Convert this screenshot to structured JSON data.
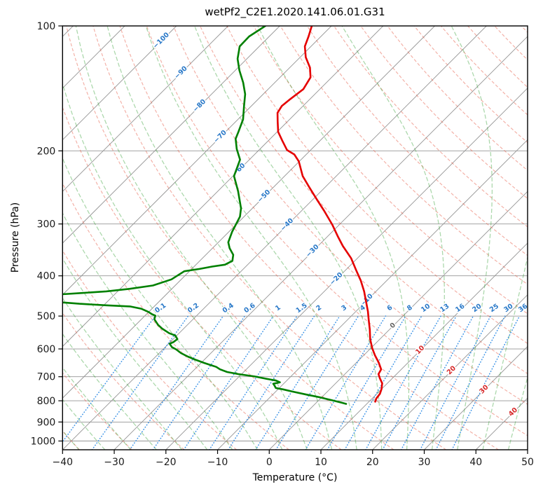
{
  "chart_data": {
    "type": "skewt-logp",
    "title": "wetPf2_C2E1.2020.141.06.01.G31",
    "xlabel": "Temperature (°C)",
    "ylabel": "Pressure (hPa)",
    "xlim": [
      -40,
      50
    ],
    "pressure_lim": [
      100,
      1050
    ],
    "temp_ticks": [
      -40,
      -30,
      -20,
      -10,
      0,
      10,
      20,
      30,
      40,
      50
    ],
    "pressure_ticks": [
      100,
      200,
      300,
      400,
      500,
      600,
      700,
      800,
      900,
      1000
    ],
    "grid": true,
    "skew_deg": 45,
    "isotherms": {
      "min": -120,
      "max": 50,
      "step": 10
    },
    "dry_adiabats": {
      "min": -40,
      "max": 200,
      "step": 10
    },
    "moist_adiabats": {
      "min": -40,
      "max": 45,
      "step": 5
    },
    "mixing_ratios": [
      0.1,
      0.2,
      0.4,
      0.6,
      1,
      1.5,
      2,
      3,
      4,
      6,
      8,
      10,
      13,
      16,
      20,
      25,
      30,
      36
    ],
    "mixing_label_pressure": 477,
    "mixing_top_pressure": 500,
    "isotherm_labels": [
      {
        "t": -100,
        "p": 108
      },
      {
        "t": -90,
        "p": 129
      },
      {
        "t": -80,
        "p": 155
      },
      {
        "t": -70,
        "p": 184
      },
      {
        "t": -60,
        "p": 221
      },
      {
        "t": -50,
        "p": 256
      },
      {
        "t": -40,
        "p": 300
      },
      {
        "t": -30,
        "p": 347
      },
      {
        "t": -20,
        "p": 405
      },
      {
        "t": -10,
        "p": 456
      },
      {
        "t": 0,
        "p": 525
      },
      {
        "t": 10,
        "p": 601
      },
      {
        "t": 20,
        "p": 673
      },
      {
        "t": 30,
        "p": 748
      },
      {
        "t": 40,
        "p": 848
      }
    ],
    "series": [
      {
        "name": "temperature",
        "color": "#e50000",
        "points": [
          [
            100,
            -73.8
          ],
          [
            106,
            -72.4
          ],
          [
            112,
            -71.2
          ],
          [
            119,
            -68.9
          ],
          [
            126,
            -66.1
          ],
          [
            133,
            -64.1
          ],
          [
            142,
            -63.2
          ],
          [
            150,
            -63.8
          ],
          [
            156,
            -64.1
          ],
          [
            162,
            -63.6
          ],
          [
            170,
            -61.9
          ],
          [
            180,
            -59.8
          ],
          [
            189,
            -57.3
          ],
          [
            199,
            -54.6
          ],
          [
            204,
            -52.3
          ],
          [
            212,
            -50.1
          ],
          [
            230,
            -46.5
          ],
          [
            245,
            -43
          ],
          [
            263,
            -39
          ],
          [
            279,
            -35.6
          ],
          [
            301,
            -31.4
          ],
          [
            321,
            -28.1
          ],
          [
            339,
            -25.2
          ],
          [
            363,
            -21.2
          ],
          [
            388,
            -17.9
          ],
          [
            411,
            -15
          ],
          [
            436,
            -12.3
          ],
          [
            462,
            -9.9
          ],
          [
            487,
            -7.7
          ],
          [
            512,
            -5.8
          ],
          [
            539,
            -3.8
          ],
          [
            568,
            -1.9
          ],
          [
            598,
            0.3
          ],
          [
            622,
            2.2
          ],
          [
            647,
            4.3
          ],
          [
            672,
            6.1
          ],
          [
            690,
            6.5
          ],
          [
            708,
            7.7
          ],
          [
            726,
            9
          ],
          [
            750,
            10
          ],
          [
            770,
            10.6
          ],
          [
            790,
            10.8
          ],
          [
            804,
            11.2
          ]
        ]
      },
      {
        "name": "dewpoint",
        "color": "#008000",
        "points": [
          [
            100,
            -82.8
          ],
          [
            106,
            -83.9
          ],
          [
            112,
            -83.8
          ],
          [
            120,
            -81.8
          ],
          [
            128,
            -79.2
          ],
          [
            137,
            -76.1
          ],
          [
            146,
            -73.5
          ],
          [
            156,
            -71.4
          ],
          [
            168,
            -69
          ],
          [
            180,
            -67.5
          ],
          [
            187,
            -66.7
          ],
          [
            198,
            -64.5
          ],
          [
            210,
            -61.8
          ],
          [
            230,
            -59.8
          ],
          [
            250,
            -56.1
          ],
          [
            275,
            -52.2
          ],
          [
            288,
            -50.8
          ],
          [
            313,
            -49.4
          ],
          [
            332,
            -48.1
          ],
          [
            343,
            -46.7
          ],
          [
            356,
            -44.7
          ],
          [
            368,
            -43.7
          ],
          [
            376,
            -44.4
          ],
          [
            380,
            -46.5
          ],
          [
            385,
            -48.5
          ],
          [
            390,
            -51
          ],
          [
            408,
            -51.9
          ],
          [
            422,
            -54.3
          ],
          [
            430,
            -58.2
          ],
          [
            436,
            -62.2
          ],
          [
            440,
            -66.5
          ],
          [
            448,
            -76
          ],
          [
            454,
            -77
          ],
          [
            459,
            -72
          ],
          [
            463,
            -69
          ],
          [
            467,
            -65
          ],
          [
            471,
            -59.5
          ],
          [
            474,
            -54.7
          ],
          [
            480,
            -52.1
          ],
          [
            488,
            -50.2
          ],
          [
            495,
            -48.9
          ],
          [
            499,
            -48
          ],
          [
            509,
            -47.5
          ],
          [
            525,
            -45.7
          ],
          [
            536,
            -44.2
          ],
          [
            550,
            -41.9
          ],
          [
            557,
            -40.3
          ],
          [
            568,
            -39.2
          ],
          [
            578,
            -39.4
          ],
          [
            583,
            -39.8
          ],
          [
            594,
            -38.7
          ],
          [
            602,
            -37.4
          ],
          [
            614,
            -35.8
          ],
          [
            626,
            -33.8
          ],
          [
            638,
            -31.5
          ],
          [
            648,
            -29.5
          ],
          [
            656,
            -27.8
          ],
          [
            663,
            -26.3
          ],
          [
            672,
            -25.1
          ],
          [
            682,
            -23.2
          ],
          [
            690,
            -20.6
          ],
          [
            699,
            -17
          ],
          [
            710,
            -13.7
          ],
          [
            715,
            -12.1
          ],
          [
            722,
            -11
          ],
          [
            728,
            -12
          ],
          [
            734,
            -11.5
          ],
          [
            745,
            -10.7
          ],
          [
            751,
            -9
          ],
          [
            760,
            -6.8
          ],
          [
            773,
            -3.5
          ],
          [
            785,
            -0.3
          ],
          [
            798,
            2.6
          ],
          [
            808,
            4.8
          ],
          [
            814,
            6
          ]
        ]
      }
    ],
    "colors": {
      "frame": "#000000",
      "isotherm": "#959595",
      "grid": "#959595",
      "dry_adiabat": "#e8604c",
      "moist_adiabat": "#35a035",
      "mixing_ratio": "#3a92e6",
      "label_negative": "#2878c8",
      "label_zero": "#666666",
      "label_positive": "#d62728",
      "tick_text": "#1a1a1a"
    }
  }
}
